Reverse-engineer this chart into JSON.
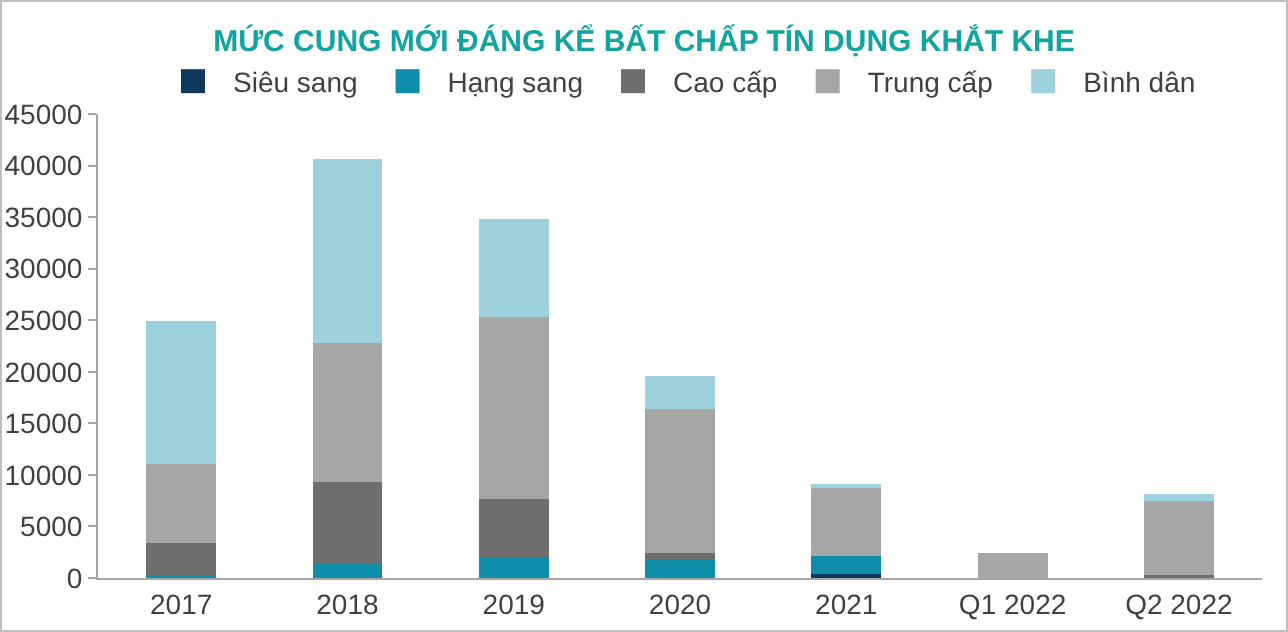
{
  "chart_data": {
    "type": "bar",
    "stacked": true,
    "title": "MỨC CUNG MỚI ĐÁNG KỂ BẤT CHẤP TÍN DỤNG KHẮT KHE",
    "categories": [
      "2017",
      "2018",
      "2019",
      "2020",
      "2021",
      "Q1 2022",
      "Q2 2022"
    ],
    "series": [
      {
        "name": "Siêu sang",
        "color": "#0d3a5c",
        "values": [
          0,
          0,
          0,
          0,
          400,
          0,
          0
        ]
      },
      {
        "name": "Hạng sang",
        "color": "#0e8eaa",
        "values": [
          300,
          1350,
          2000,
          1750,
          1750,
          0,
          0
        ]
      },
      {
        "name": "Cao cấp",
        "color": "#6e6e6e",
        "values": [
          3100,
          7950,
          5700,
          650,
          0,
          0,
          250
        ]
      },
      {
        "name": "Trung cấp",
        "color": "#a6a6a6",
        "values": [
          7700,
          13500,
          17600,
          14000,
          6750,
          2400,
          7250
        ]
      },
      {
        "name": "Bình dân",
        "color": "#9dd2dc",
        "values": [
          13800,
          17800,
          9500,
          3200,
          100,
          0,
          600
        ]
      }
    ],
    "ylim": [
      0,
      45000
    ],
    "yticks": [
      0,
      5000,
      10000,
      15000,
      20000,
      25000,
      30000,
      35000,
      40000,
      45000
    ],
    "grid": false,
    "legend": "top"
  }
}
